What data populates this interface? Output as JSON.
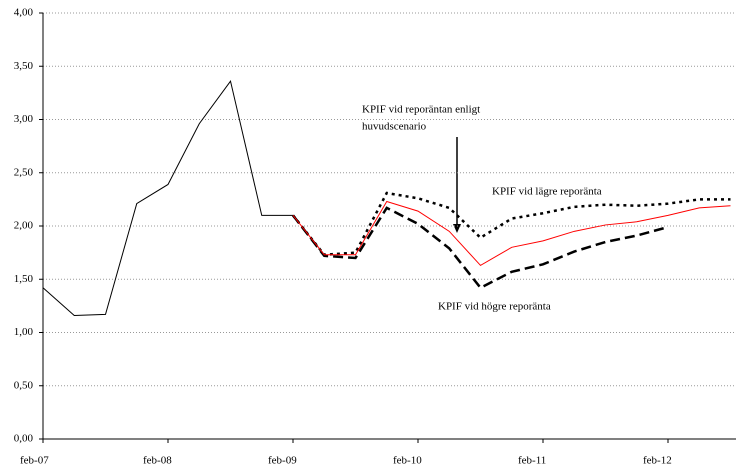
{
  "chart_data": {
    "type": "line",
    "categories": [
      "feb-07",
      null,
      null,
      null,
      "feb-08",
      null,
      null,
      null,
      "feb-09",
      null,
      null,
      null,
      "feb-10",
      null,
      null,
      null,
      "feb-11",
      null,
      null,
      null,
      "feb-12",
      null,
      null
    ],
    "series": [
      {
        "color": "#000000",
        "dash": "solid",
        "values": [
          1.42,
          1.16,
          1.17,
          2.21,
          2.39,
          2.96,
          3.36,
          2.1,
          2.1,
          null,
          null,
          null,
          null,
          null,
          null,
          null,
          null,
          null,
          null,
          null,
          null,
          null,
          null
        ]
      },
      {
        "color": "#ff0000",
        "dash": "solid",
        "values": [
          null,
          null,
          null,
          null,
          null,
          null,
          null,
          null,
          2.1,
          1.73,
          1.73,
          2.23,
          2.14,
          1.95,
          1.63,
          1.8,
          1.86,
          1.95,
          2.01,
          2.04,
          2.1,
          2.17,
          2.19
        ]
      },
      {
        "color": "#000000",
        "dash": "dotted",
        "values": [
          null,
          null,
          null,
          null,
          null,
          null,
          null,
          null,
          2.1,
          1.73,
          1.75,
          2.31,
          2.26,
          2.17,
          1.89,
          2.07,
          2.12,
          2.18,
          2.2,
          2.19,
          2.21,
          2.25,
          2.25
        ]
      },
      {
        "color": "#000000",
        "dash": "dashed",
        "values": [
          null,
          null,
          null,
          null,
          null,
          null,
          null,
          null,
          2.1,
          1.72,
          1.7,
          2.17,
          2.02,
          1.79,
          1.42,
          1.57,
          1.64,
          1.76,
          1.85,
          1.91,
          1.99,
          null,
          null
        ]
      }
    ],
    "ylim": [
      0,
      4
    ],
    "yticks": [
      {
        "value": 0,
        "label": "0,00"
      },
      {
        "value": 0.5,
        "label": "0,50"
      },
      {
        "value": 1,
        "label": "1,00"
      },
      {
        "value": 1.5,
        "label": "1,50"
      },
      {
        "value": 2,
        "label": "2,00"
      },
      {
        "value": 2.5,
        "label": "2,50"
      },
      {
        "value": 3,
        "label": "3,00"
      },
      {
        "value": 3.5,
        "label": "3,50"
      },
      {
        "value": 4,
        "label": "4,00"
      }
    ],
    "grid": true,
    "annotations": [
      "KPIF vid reporäntan enligt",
      "huvudscenario",
      "KPIF vid lägre reporänta",
      "KPIF vid högre reporänta"
    ]
  }
}
